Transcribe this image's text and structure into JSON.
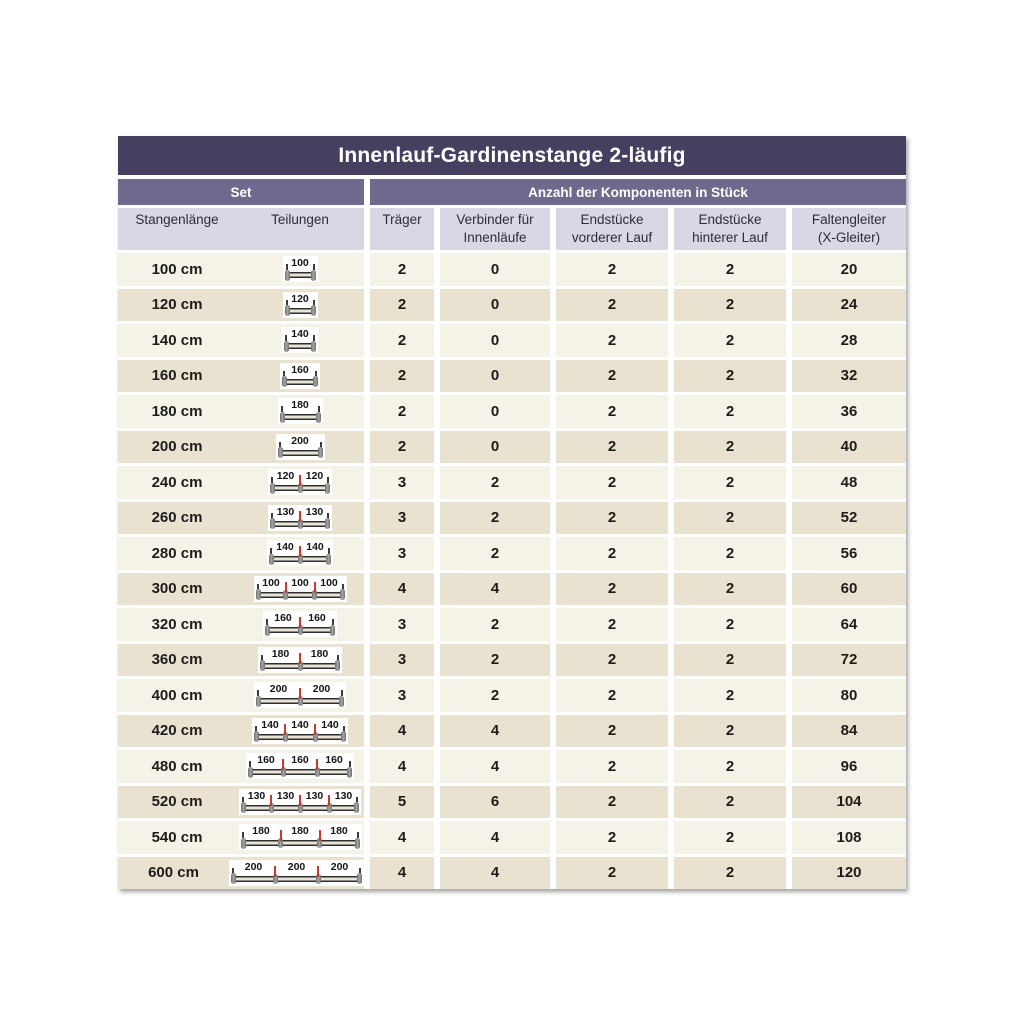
{
  "title": "Innenlauf-Gardinenstange 2-läufig",
  "sections": {
    "set": "Set",
    "components": "Anzahl der Komponenten in Stück"
  },
  "columns": {
    "length": "Stangenlänge",
    "divisions": "Teilungen",
    "traeger": {
      "line1": "Träger",
      "line2": ""
    },
    "verbinder": {
      "line1": "Verbinder für",
      "line2": "Innenläufe"
    },
    "end_front": {
      "line1": "Endstücke",
      "line2": "vorderer Lauf"
    },
    "end_back": {
      "line1": "Endstücke",
      "line2": "hinterer Lauf"
    },
    "gleiter": {
      "line1": "Faltengleiter",
      "line2": "(X-Gleiter)"
    }
  },
  "rows": [
    {
      "length": "100 cm",
      "segments": [
        100
      ],
      "traeger": "2",
      "verbinder": "0",
      "end_front": "2",
      "end_back": "2",
      "gleiter": "20"
    },
    {
      "length": "120 cm",
      "segments": [
        120
      ],
      "traeger": "2",
      "verbinder": "0",
      "end_front": "2",
      "end_back": "2",
      "gleiter": "24"
    },
    {
      "length": "140 cm",
      "segments": [
        140
      ],
      "traeger": "2",
      "verbinder": "0",
      "end_front": "2",
      "end_back": "2",
      "gleiter": "28"
    },
    {
      "length": "160 cm",
      "segments": [
        160
      ],
      "traeger": "2",
      "verbinder": "0",
      "end_front": "2",
      "end_back": "2",
      "gleiter": "32"
    },
    {
      "length": "180 cm",
      "segments": [
        180
      ],
      "traeger": "2",
      "verbinder": "0",
      "end_front": "2",
      "end_back": "2",
      "gleiter": "36"
    },
    {
      "length": "200 cm",
      "segments": [
        200
      ],
      "traeger": "2",
      "verbinder": "0",
      "end_front": "2",
      "end_back": "2",
      "gleiter": "40"
    },
    {
      "length": "240 cm",
      "segments": [
        120,
        120
      ],
      "traeger": "3",
      "verbinder": "2",
      "end_front": "2",
      "end_back": "2",
      "gleiter": "48"
    },
    {
      "length": "260 cm",
      "segments": [
        130,
        130
      ],
      "traeger": "3",
      "verbinder": "2",
      "end_front": "2",
      "end_back": "2",
      "gleiter": "52"
    },
    {
      "length": "280 cm",
      "segments": [
        140,
        140
      ],
      "traeger": "3",
      "verbinder": "2",
      "end_front": "2",
      "end_back": "2",
      "gleiter": "56"
    },
    {
      "length": "300 cm",
      "segments": [
        100,
        100,
        100
      ],
      "traeger": "4",
      "verbinder": "4",
      "end_front": "2",
      "end_back": "2",
      "gleiter": "60"
    },
    {
      "length": "320 cm",
      "segments": [
        160,
        160
      ],
      "traeger": "3",
      "verbinder": "2",
      "end_front": "2",
      "end_back": "2",
      "gleiter": "64"
    },
    {
      "length": "360 cm",
      "segments": [
        180,
        180
      ],
      "traeger": "3",
      "verbinder": "2",
      "end_front": "2",
      "end_back": "2",
      "gleiter": "72"
    },
    {
      "length": "400 cm",
      "segments": [
        200,
        200
      ],
      "traeger": "3",
      "verbinder": "2",
      "end_front": "2",
      "end_back": "2",
      "gleiter": "80"
    },
    {
      "length": "420 cm",
      "segments": [
        140,
        140,
        140
      ],
      "traeger": "4",
      "verbinder": "4",
      "end_front": "2",
      "end_back": "2",
      "gleiter": "84"
    },
    {
      "length": "480 cm",
      "segments": [
        160,
        160,
        160
      ],
      "traeger": "4",
      "verbinder": "4",
      "end_front": "2",
      "end_back": "2",
      "gleiter": "96"
    },
    {
      "length": "520 cm",
      "segments": [
        130,
        130,
        130,
        130
      ],
      "traeger": "5",
      "verbinder": "6",
      "end_front": "2",
      "end_back": "2",
      "gleiter": "104"
    },
    {
      "length": "540 cm",
      "segments": [
        180,
        180,
        180
      ],
      "traeger": "4",
      "verbinder": "4",
      "end_front": "2",
      "end_back": "2",
      "gleiter": "108"
    },
    {
      "length": "600 cm",
      "segments": [
        200,
        200,
        200
      ],
      "traeger": "4",
      "verbinder": "4",
      "end_front": "2",
      "end_back": "2",
      "gleiter": "120"
    }
  ],
  "colors": {
    "title_bg": "#473f60",
    "band_bg": "#6f6a8d",
    "header_bg": "#dad7e4",
    "row_light": "#f5f2e7",
    "row_dark": "#e9e2d1",
    "connector_red": "#c63b2c",
    "rod_grey": "#8c8c8c"
  }
}
